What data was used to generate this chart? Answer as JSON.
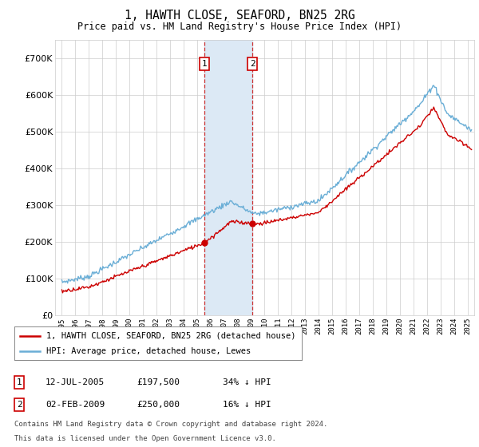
{
  "title": "1, HAWTH CLOSE, SEAFORD, BN25 2RG",
  "subtitle": "Price paid vs. HM Land Registry's House Price Index (HPI)",
  "legend_line1": "1, HAWTH CLOSE, SEAFORD, BN25 2RG (detached house)",
  "legend_line2": "HPI: Average price, detached house, Lewes",
  "footnote1": "Contains HM Land Registry data © Crown copyright and database right 2024.",
  "footnote2": "This data is licensed under the Open Government Licence v3.0.",
  "sale1_date": "12-JUL-2005",
  "sale1_price": "£197,500",
  "sale1_hpi": "34% ↓ HPI",
  "sale2_date": "02-FEB-2009",
  "sale2_price": "£250,000",
  "sale2_hpi": "16% ↓ HPI",
  "hpi_color": "#6aaed6",
  "price_color": "#cc0000",
  "shade_color": "#dce9f5",
  "vline_color": "#cc3333",
  "ylim": [
    0,
    750000
  ],
  "yticks": [
    0,
    100000,
    200000,
    300000,
    400000,
    500000,
    600000,
    700000
  ],
  "sale1_x": 2005.53,
  "sale1_y": 197500,
  "sale2_x": 2009.09,
  "sale2_y": 250000,
  "xlim_left": 1994.5,
  "xlim_right": 2025.5
}
